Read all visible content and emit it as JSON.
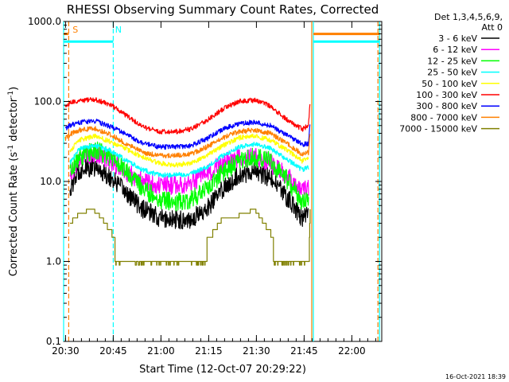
{
  "chart_data": {
    "type": "line",
    "title": "RHESSI Observing Summary Count Rates, Corrected",
    "xlabel": "Start Time (12-Oct-07 20:29:22)",
    "ylabel_main": "Corrected Count Rate (s",
    "ylabel_sup1": "-1",
    "ylabel_mid": " detector",
    "ylabel_sup2": "-1",
    "ylabel_end": ")",
    "yscale": "log",
    "ylim": [
      0.1,
      1000
    ],
    "xlim_minutes": [
      0,
      100
    ],
    "x_ticks": [
      {
        "minute": 0.6,
        "label": "20:30"
      },
      {
        "minute": 15.6,
        "label": "20:45"
      },
      {
        "minute": 30.6,
        "label": "21:00"
      },
      {
        "minute": 45.6,
        "label": "21:15"
      },
      {
        "minute": 60.6,
        "label": "21:30"
      },
      {
        "minute": 75.6,
        "label": "21:45"
      },
      {
        "minute": 90.6,
        "label": "22:00"
      }
    ],
    "y_ticks": [
      {
        "value": 0.1,
        "label": "0.1"
      },
      {
        "value": 1,
        "label": "1.0"
      },
      {
        "value": 10,
        "label": "10.0"
      },
      {
        "value": 100,
        "label": "100.0"
      },
      {
        "value": 1000,
        "label": "1000.0"
      }
    ],
    "legend_header": [
      "Det 1,3,4,5,6,9,",
      "Att 0"
    ],
    "legend_position": "right",
    "timestamp": "16-Oct-2021 18:39",
    "series": [
      {
        "name": "3 - 6 keV",
        "color": "#000000",
        "x": [
          2,
          5,
          10,
          15,
          20,
          25,
          30,
          35,
          40,
          45,
          50,
          55,
          60,
          65,
          70,
          75,
          77
        ],
        "y": [
          8,
          14,
          15,
          11,
          7,
          4.5,
          3.5,
          3.3,
          3.4,
          4.5,
          8,
          12,
          13.5,
          11,
          6.5,
          3.5,
          4
        ]
      },
      {
        "name": "6 - 12 keV",
        "color": "#ff00ff",
        "x": [
          2,
          5,
          10,
          15,
          20,
          25,
          30,
          35,
          40,
          45,
          50,
          55,
          60,
          65,
          70,
          75,
          77
        ],
        "y": [
          12,
          20,
          23,
          18,
          13,
          10,
          9,
          9,
          9.5,
          12,
          17,
          20,
          20,
          17,
          12,
          7.5,
          8
        ]
      },
      {
        "name": "12 - 25 keV",
        "color": "#00ff00",
        "x": [
          2,
          5,
          10,
          15,
          20,
          25,
          30,
          35,
          40,
          45,
          50,
          55,
          60,
          65,
          70,
          75,
          77
        ],
        "y": [
          14,
          20,
          25,
          20,
          13,
          8,
          6,
          5.5,
          6,
          8,
          13,
          18,
          20,
          18,
          11,
          5.5,
          6
        ]
      },
      {
        "name": "25 - 50 keV",
        "color": "#00ffff",
        "x": [
          2,
          5,
          10,
          15,
          20,
          25,
          30,
          35,
          40,
          45,
          50,
          55,
          60,
          65,
          70,
          75,
          77
        ],
        "y": [
          17,
          26,
          28,
          24,
          18,
          14,
          12,
          12,
          12.5,
          15,
          21,
          27,
          29,
          26,
          19,
          14,
          15
        ]
      },
      {
        "name": "50 - 100 keV",
        "color": "#ffff00",
        "x": [
          2,
          5,
          10,
          15,
          20,
          25,
          30,
          35,
          40,
          45,
          50,
          55,
          60,
          65,
          70,
          75,
          77
        ],
        "y": [
          24,
          33,
          37,
          31,
          25,
          20,
          17,
          16,
          17,
          21,
          28,
          35,
          37,
          33,
          25,
          18,
          19
        ]
      },
      {
        "name": "100 - 300 keV",
        "color": "#ff0000",
        "x": [
          0.5,
          2,
          5,
          10,
          15,
          20,
          25,
          30,
          35,
          40,
          45,
          50,
          55,
          60,
          65,
          70,
          75,
          77,
          77.5
        ],
        "y": [
          85,
          95,
          103,
          105,
          90,
          65,
          48,
          42,
          42,
          45,
          58,
          80,
          100,
          104,
          88,
          60,
          45,
          50,
          110
        ]
      },
      {
        "name": "300 - 800 keV",
        "color": "#0000ff",
        "x": [
          0.5,
          2,
          5,
          10,
          15,
          20,
          25,
          30,
          35,
          40,
          45,
          50,
          55,
          60,
          65,
          70,
          75,
          77,
          77.5
        ],
        "y": [
          45,
          50,
          55,
          57,
          48,
          38,
          30,
          27,
          27,
          28,
          34,
          45,
          53,
          55,
          50,
          38,
          29,
          30,
          60
        ]
      },
      {
        "name": "800 - 7000 keV",
        "color": "#ff8000",
        "x": [
          0.5,
          2,
          5,
          10,
          15,
          20,
          25,
          30,
          35,
          40,
          45,
          50,
          55,
          60,
          65,
          70,
          75,
          77,
          77.5
        ],
        "y": [
          34,
          39,
          44,
          46,
          38,
          29,
          23,
          21,
          21,
          22,
          27,
          35,
          42,
          44,
          40,
          30,
          22,
          23,
          45
        ]
      },
      {
        "name": "7000 - 15000 keV",
        "color": "#808000",
        "x": [
          2,
          5,
          9,
          12,
          15,
          17,
          20,
          25,
          30,
          35,
          38,
          42,
          46,
          50,
          53,
          57,
          60,
          65,
          68,
          72,
          77,
          77.5
        ],
        "y": [
          3,
          4,
          4.5,
          3.5,
          2.3,
          1.5,
          1,
          1,
          1,
          1,
          0.9,
          1.3,
          2,
          3.5,
          3.5,
          4,
          4.5,
          2.3,
          1,
          1,
          1,
          5
        ]
      }
    ],
    "annotations": [
      {
        "text": "S",
        "color": "#ff8000",
        "minute": 2.8
      },
      {
        "text": "N",
        "color": "#00ffff",
        "minute": 16.2
      }
    ],
    "marker_lines": [
      {
        "minute": 0,
        "color": "#00ffff",
        "style": "solid"
      },
      {
        "minute": 1.6,
        "color": "#ff8000",
        "style": "dashed"
      },
      {
        "minute": 15.6,
        "color": "#00ffff",
        "style": "dashed"
      },
      {
        "minute": 78.0,
        "color": "#ff8000",
        "style": "solid"
      },
      {
        "minute": 78.5,
        "color": "#00ffff",
        "style": "solid"
      },
      {
        "minute": 98.8,
        "color": "#ff8000",
        "style": "dashed"
      },
      {
        "minute": 99.3,
        "color": "#00ffff",
        "style": "solid"
      }
    ],
    "flag_bars": [
      {
        "color": "#ff8000",
        "start": 0,
        "end": 1.6,
        "value": 700
      },
      {
        "color": "#00ffff",
        "start": 0,
        "end": 15.6,
        "value": 560
      },
      {
        "color": "#ff8000",
        "start": 78.5,
        "end": 99.3,
        "value": 700
      },
      {
        "color": "#00ffff",
        "start": 78.5,
        "end": 99.3,
        "value": 560
      }
    ]
  }
}
